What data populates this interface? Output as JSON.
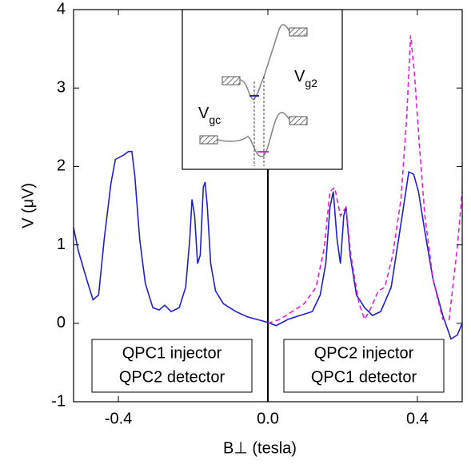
{
  "chart_data": {
    "type": "line",
    "x_label": "B⊥ (tesla)",
    "y_label": "V (μV)",
    "xlim": [
      -0.52,
      0.52
    ],
    "xticks": [
      -0.4,
      {
        "value": 0,
        "label": "0.0"
      },
      0.4
    ],
    "ylim": [
      -1,
      4
    ],
    "yticks": [
      -1,
      0,
      1,
      2,
      3,
      4
    ],
    "series": [
      {
        "color": "#1f1fcc",
        "dash": false,
        "x": [
          -0.52,
          -0.507,
          -0.485,
          -0.468,
          -0.453,
          -0.438,
          -0.42,
          -0.408,
          -0.388,
          -0.373,
          -0.364,
          -0.356,
          -0.343,
          -0.328,
          -0.308,
          -0.291,
          -0.276,
          -0.259,
          -0.237,
          -0.22,
          -0.209,
          -0.203,
          -0.196,
          -0.188,
          -0.181,
          -0.173,
          -0.168,
          -0.162,
          -0.153,
          -0.14,
          -0.119,
          -0.086,
          -0.054,
          -0.022,
          0,
          0.022,
          0.054,
          0.086,
          0.119,
          0.14,
          0.155,
          0.166,
          0.175,
          0.185,
          0.194,
          0.203,
          0.209,
          0.22,
          0.237,
          0.259,
          0.28,
          0.302,
          0.33,
          0.356,
          0.377,
          0.39,
          0.403,
          0.42,
          0.442,
          0.468,
          0.49,
          0.507,
          0.52
        ],
        "values": [
          1.22,
          0.92,
          0.56,
          0.3,
          0.36,
          1.07,
          1.78,
          2.09,
          2.14,
          2.19,
          2.19,
          1.88,
          1.07,
          0.51,
          0.2,
          0.17,
          0.23,
          0.15,
          0.2,
          0.46,
          1.07,
          1.58,
          1.37,
          0.76,
          0.87,
          1.73,
          1.8,
          1.48,
          0.76,
          0.41,
          0.25,
          0.15,
          0.08,
          0.04,
          0.01,
          -0.03,
          0.05,
          0.1,
          0.15,
          0.36,
          0.76,
          1.48,
          1.68,
          1.07,
          0.76,
          1.37,
          1.48,
          0.87,
          0.36,
          0.2,
          0.1,
          0.15,
          0.46,
          1.27,
          1.93,
          1.9,
          1.68,
          1.17,
          0.56,
          0.1,
          -0.2,
          -0.15,
          0
        ]
      },
      {
        "color": "#e020e0",
        "dash": true,
        "x": [
          0,
          0.032,
          0.065,
          0.097,
          0.129,
          0.151,
          0.166,
          0.179,
          0.194,
          0.209,
          0.222,
          0.244,
          0.259,
          0.276,
          0.295,
          0.313,
          0.334,
          0.356,
          0.371,
          0.382,
          0.392,
          0.405,
          0.42,
          0.442,
          0.468,
          0.485,
          0.507,
          0.52
        ],
        "values": [
          0,
          0.05,
          0.15,
          0.25,
          0.46,
          0.97,
          1.68,
          1.73,
          1.37,
          1.48,
          0.87,
          0.25,
          0.05,
          0.2,
          0.41,
          0.46,
          0.87,
          1.58,
          2.6,
          3.67,
          3.2,
          2.29,
          1.37,
          0.56,
          0.05,
          0.05,
          0.97,
          1.68
        ]
      }
    ],
    "annotations": [
      [
        "QPC1 injector",
        "QPC2 detector"
      ],
      [
        "QPC2 injector",
        "QPC1 detector"
      ]
    ],
    "inset_labels": [
      {
        "main": "V",
        "sub": "gc"
      },
      {
        "main": "V",
        "sub": "g2"
      }
    ]
  }
}
